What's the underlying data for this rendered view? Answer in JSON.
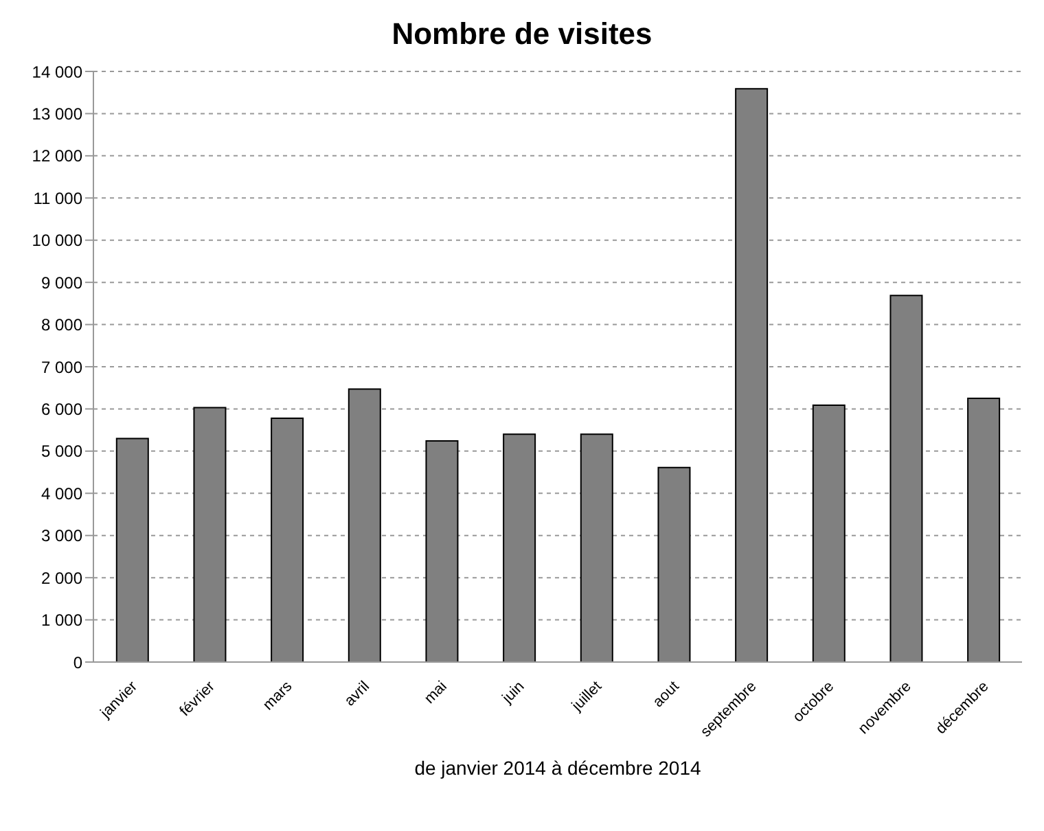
{
  "chart_data": {
    "type": "bar",
    "title": "Nombre de visites",
    "xlabel": "de janvier 2014 à décembre 2014",
    "categories": [
      "janvier",
      "février",
      "mars",
      "avril",
      "mai",
      "juin",
      "juillet",
      "aout",
      "septembre",
      "octobre",
      "novembre",
      "décembre"
    ],
    "values": [
      5300,
      6030,
      5780,
      6470,
      5240,
      5400,
      5400,
      4610,
      13590,
      6090,
      8690,
      6250
    ],
    "color": "#808080",
    "ylim": [
      0,
      14000
    ],
    "yticks": [
      0,
      {
        "value": 1000,
        "label": "1 000"
      },
      {
        "value": 2000,
        "label": "2 000"
      },
      {
        "value": 3000,
        "label": "3 000"
      },
      {
        "value": 4000,
        "label": "4 000"
      },
      {
        "value": 5000,
        "label": "5 000"
      },
      {
        "value": 6000,
        "label": "6 000"
      },
      {
        "value": 7000,
        "label": "7 000"
      },
      {
        "value": 8000,
        "label": "8 000"
      },
      {
        "value": 9000,
        "label": "9 000"
      },
      {
        "value": 10000,
        "label": "10 000"
      },
      {
        "value": 11000,
        "label": "11 000"
      },
      {
        "value": 12000,
        "label": "12 000"
      },
      {
        "value": 13000,
        "label": "13 000"
      },
      {
        "value": 14000,
        "label": "14 000"
      }
    ],
    "grid": "y",
    "legend": false
  }
}
